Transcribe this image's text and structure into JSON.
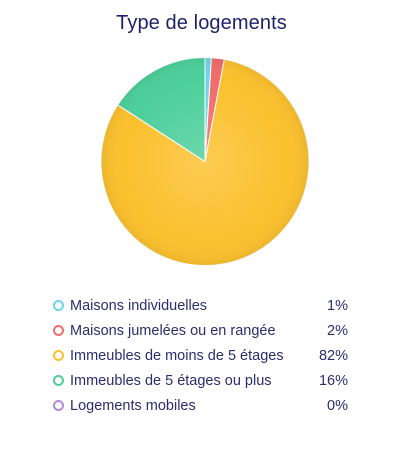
{
  "chart_data": {
    "type": "pie",
    "title": "Type de logements",
    "slices": [
      {
        "label": "Maisons individuelles",
        "value": 1,
        "value_label": "1%",
        "color": "#6fd3ea"
      },
      {
        "label": "Maisons jumelées ou en rangée",
        "value": 2,
        "value_label": "2%",
        "color": "#f06b6b"
      },
      {
        "label": "Immeubles de moins de 5 étages",
        "value": 82,
        "value_label": "82%",
        "color": "#fbc02d"
      },
      {
        "label": "Immeubles de 5 étages ou plus",
        "value": 16,
        "value_label": "16%",
        "color": "#4ccf9a"
      },
      {
        "label": "Logements mobiles",
        "value": 0,
        "value_label": "0%",
        "color": "#b48ad6"
      }
    ],
    "legend_position": "bottom"
  }
}
